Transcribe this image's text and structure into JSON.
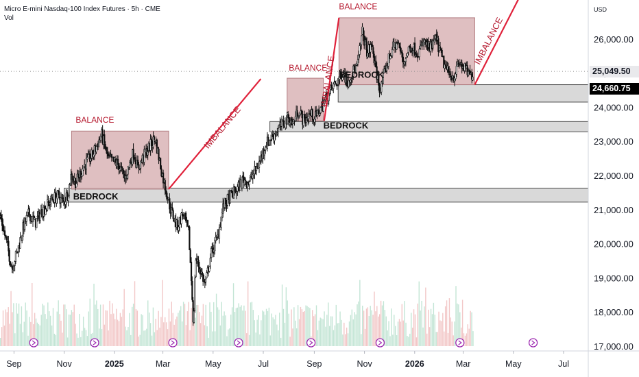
{
  "header": {
    "title": "Micro E-mini Nasdaq-100 Index Futures · 5h · CME",
    "volume_label": "Vol"
  },
  "currency": "USD",
  "price_tags": {
    "last": "25,049.50",
    "level": "24,660.75"
  },
  "colors": {
    "balance_fill": "#d9b4b6",
    "balance_border": "#b27c80",
    "bedrock_fill": "#d9d9d9",
    "annotation_red": "#e0213a",
    "label_red": "#b5192e",
    "candle": "#111111",
    "volume_up": "#c3e5d5",
    "volume_down": "#f2c7c7",
    "event_icon": "#9c27b0"
  },
  "chart_data": {
    "type": "candlestick",
    "y_axis": {
      "range": [
        17000,
        27000
      ],
      "ticks": [
        "17,000.00",
        "18,000.00",
        "19,000.00",
        "20,000.00",
        "21,000.00",
        "22,000.00",
        "23,000.00",
        "24,000.00",
        "25,000.00",
        "26,000.00"
      ]
    },
    "x_axis": {
      "start": "2024-08-15",
      "end": "2026-07-31",
      "ticks": [
        {
          "date": "2024-09-01",
          "label": "Sep",
          "bold": false
        },
        {
          "date": "2024-11-01",
          "label": "Nov",
          "bold": false
        },
        {
          "date": "2025-01-01",
          "label": "2025",
          "bold": true
        },
        {
          "date": "2025-03-01",
          "label": "Mar",
          "bold": false
        },
        {
          "date": "2025-05-01",
          "label": "May",
          "bold": false
        },
        {
          "date": "2025-07-01",
          "label": "Jul",
          "bold": false
        },
        {
          "date": "2025-09-01",
          "label": "Sep",
          "bold": false
        },
        {
          "date": "2025-11-01",
          "label": "Nov",
          "bold": false
        },
        {
          "date": "2026-01-01",
          "label": "2026",
          "bold": true
        },
        {
          "date": "2026-03-01",
          "label": "Mar",
          "bold": false
        },
        {
          "date": "2026-05-01",
          "label": "May",
          "bold": false
        },
        {
          "date": "2026-07-01",
          "label": "Jul",
          "bold": false
        }
      ]
    },
    "price_path": [
      [
        "2024-08-15",
        20800
      ],
      [
        "2024-08-22",
        20100
      ],
      [
        "2024-08-29",
        19300
      ],
      [
        "2024-09-05",
        19800
      ],
      [
        "2024-09-12",
        20500
      ],
      [
        "2024-09-19",
        20900
      ],
      [
        "2024-09-26",
        20600
      ],
      [
        "2024-10-03",
        20900
      ],
      [
        "2024-10-10",
        21100
      ],
      [
        "2024-10-17",
        21300
      ],
      [
        "2024-10-24",
        21400
      ],
      [
        "2024-10-31",
        21200
      ],
      [
        "2024-11-05",
        21500
      ],
      [
        "2024-11-09",
        22000
      ],
      [
        "2024-11-15",
        21800
      ],
      [
        "2024-11-25",
        22300
      ],
      [
        "2024-12-05",
        22600
      ],
      [
        "2024-12-16",
        23200
      ],
      [
        "2024-12-24",
        22500
      ],
      [
        "2025-01-06",
        22300
      ],
      [
        "2025-01-13",
        21900
      ],
      [
        "2025-01-24",
        22700
      ],
      [
        "2025-01-29",
        22200
      ],
      [
        "2025-02-06",
        22600
      ],
      [
        "2025-02-14",
        22900
      ],
      [
        "2025-02-19",
        23100
      ],
      [
        "2025-02-28",
        22000
      ],
      [
        "2025-03-10",
        21000
      ],
      [
        "2025-03-18",
        20500
      ],
      [
        "2025-03-25",
        20900
      ],
      [
        "2025-04-01",
        20300
      ],
      [
        "2025-04-04",
        19000
      ],
      [
        "2025-04-07",
        17500
      ],
      [
        "2025-04-09",
        19600
      ],
      [
        "2025-04-14",
        19300
      ],
      [
        "2025-04-21",
        18800
      ],
      [
        "2025-04-28",
        19700
      ],
      [
        "2025-05-06",
        20200
      ],
      [
        "2025-05-13",
        21100
      ],
      [
        "2025-05-22",
        21400
      ],
      [
        "2025-05-30",
        21600
      ],
      [
        "2025-06-06",
        21900
      ],
      [
        "2025-06-13",
        21800
      ],
      [
        "2025-06-20",
        22100
      ],
      [
        "2025-06-26",
        22400
      ],
      [
        "2025-07-03",
        22900
      ],
      [
        "2025-07-10",
        23100
      ],
      [
        "2025-07-17",
        23300
      ],
      [
        "2025-07-24",
        23500
      ],
      [
        "2025-07-31",
        23700
      ],
      [
        "2025-08-05",
        23500
      ],
      [
        "2025-08-12",
        23900
      ],
      [
        "2025-08-19",
        23600
      ],
      [
        "2025-08-26",
        23800
      ],
      [
        "2025-09-02",
        23700
      ],
      [
        "2025-09-09",
        24000
      ],
      [
        "2025-09-16",
        24300
      ],
      [
        "2025-09-23",
        24600
      ],
      [
        "2025-09-30",
        24800
      ],
      [
        "2025-10-06",
        25100
      ],
      [
        "2025-10-10",
        24700
      ],
      [
        "2025-10-16",
        25000
      ],
      [
        "2025-10-23",
        25200
      ],
      [
        "2025-10-29",
        26200
      ],
      [
        "2025-11-04",
        25600
      ],
      [
        "2025-11-10",
        25800
      ],
      [
        "2025-11-14",
        25100
      ],
      [
        "2025-11-20",
        24500
      ],
      [
        "2025-11-27",
        25200
      ],
      [
        "2025-12-04",
        25700
      ],
      [
        "2025-12-11",
        25900
      ],
      [
        "2025-12-18",
        25300
      ],
      [
        "2025-12-26",
        25800
      ],
      [
        "2026-01-05",
        25600
      ],
      [
        "2026-01-12",
        25900
      ],
      [
        "2026-01-19",
        25700
      ],
      [
        "2026-01-27",
        26000
      ],
      [
        "2026-02-03",
        25400
      ],
      [
        "2026-02-10",
        25000
      ],
      [
        "2026-02-17",
        24900
      ],
      [
        "2026-02-24",
        25300
      ],
      [
        "2026-03-03",
        25100
      ],
      [
        "2026-03-10",
        24900
      ],
      [
        "2026-03-13",
        25050
      ]
    ],
    "last_price": 25049.5,
    "level_price": 24660.75,
    "event_dates": [
      "2024-09-25",
      "2024-12-08",
      "2025-03-13",
      "2025-06-01",
      "2025-08-28",
      "2025-11-20",
      "2026-02-25",
      "2026-05-25"
    ],
    "annotations": {
      "balance_label": "BALANCE",
      "imbalance_label": "IMBALANCE",
      "bedrock_label": "BEDROCK",
      "balance_zones": [
        {
          "start": "2024-11-10",
          "end": "2025-03-08",
          "low": 21600,
          "high": 23300,
          "label_x": "2024-11-15",
          "label_y": 23550
        },
        {
          "start": "2025-07-30",
          "end": "2025-09-12",
          "low": 23600,
          "high": 24850,
          "label_x": "2025-08-01",
          "label_y": 25070
        },
        {
          "start": "2025-10-01",
          "end": "2026-03-15",
          "low": 24660,
          "high": 26620,
          "label_x": "2025-10-01",
          "label_y": 26870
        }
      ],
      "bedrock_zones": [
        {
          "start": "2024-11-01",
          "end": "2026-07-31",
          "low": 21220,
          "high": 21630,
          "label_x": "2024-11-12",
          "label_y": 21300
        },
        {
          "start": "2025-07-09",
          "end": "2026-07-31",
          "low": 23280,
          "high": 23580,
          "label_x": "2025-09-12",
          "label_y": 23380
        },
        {
          "start": "2025-09-30",
          "end": "2026-07-31",
          "low": 24150,
          "high": 24660,
          "label_x": "2025-10-01",
          "label_y": 24860
        }
      ],
      "imbalance_lines": [
        {
          "from": [
            "2025-03-08",
            21600
          ],
          "to": [
            "2025-06-28",
            24830
          ],
          "label_x": "2025-05-15",
          "label_y": 23350
        },
        {
          "from": [
            "2025-09-13",
            23600
          ],
          "to": [
            "2025-10-01",
            26620
          ],
          "label_x": "2025-09-21",
          "label_y": 24750
        },
        {
          "from": [
            "2026-03-15",
            24660
          ],
          "to": [
            "2026-05-10",
            27300
          ],
          "label_x": "2026-04-04",
          "label_y": 25900
        }
      ]
    }
  }
}
